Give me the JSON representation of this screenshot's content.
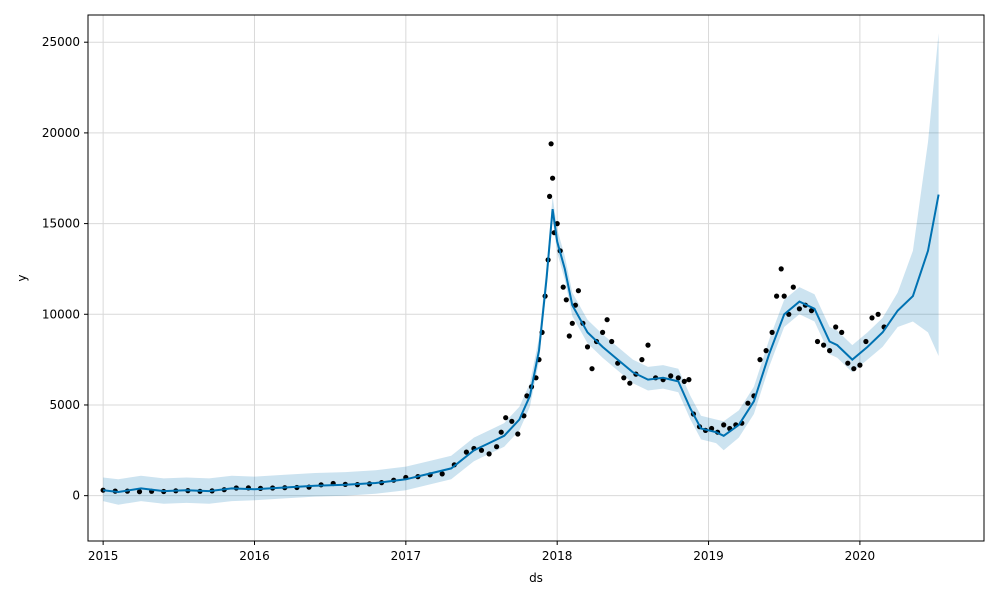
{
  "chart_data": {
    "type": "line",
    "title": "",
    "xlabel": "ds",
    "ylabel": "y",
    "grid": true,
    "xlim": [
      2014.9,
      2020.82
    ],
    "ylim": [
      -2500,
      26500
    ],
    "x_ticks": [
      {
        "value": 2015,
        "label": "2015"
      },
      {
        "value": 2016,
        "label": "2016"
      },
      {
        "value": 2017,
        "label": "2017"
      },
      {
        "value": 2018,
        "label": "2018"
      },
      {
        "value": 2019,
        "label": "2019"
      },
      {
        "value": 2020,
        "label": "2020"
      }
    ],
    "y_ticks": [
      {
        "value": 0,
        "label": "0"
      },
      {
        "value": 5000,
        "label": "5000"
      },
      {
        "value": 10000,
        "label": "10000"
      },
      {
        "value": 15000,
        "label": "15000"
      },
      {
        "value": 20000,
        "label": "20000"
      },
      {
        "value": 25000,
        "label": "25000"
      }
    ],
    "colors": {
      "forecast_line": "#0072B2",
      "uncertainty_band": "#0072B2",
      "observed_points": "#000000",
      "grid": "#d9d9d9"
    },
    "forecast": {
      "x": [
        2015.0,
        2015.1,
        2015.25,
        2015.4,
        2015.55,
        2015.7,
        2015.85,
        2016.0,
        2016.2,
        2016.4,
        2016.6,
        2016.8,
        2017.0,
        2017.15,
        2017.3,
        2017.45,
        2017.55,
        2017.65,
        2017.75,
        2017.82,
        2017.88,
        2017.93,
        2017.97,
        2018.0,
        2018.05,
        2018.1,
        2018.2,
        2018.3,
        2018.4,
        2018.5,
        2018.6,
        2018.7,
        2018.8,
        2018.88,
        2018.95,
        2019.05,
        2019.1,
        2019.2,
        2019.3,
        2019.4,
        2019.5,
        2019.6,
        2019.7,
        2019.8,
        2019.85,
        2019.95,
        2020.05,
        2020.15,
        2020.25,
        2020.35,
        2020.45,
        2020.52
      ],
      "yhat": [
        300,
        200,
        400,
        250,
        300,
        250,
        400,
        350,
        450,
        550,
        600,
        700,
        900,
        1200,
        1500,
        2500,
        2900,
        3300,
        4200,
        5500,
        8000,
        12000,
        15800,
        14000,
        12500,
        10500,
        9000,
        8200,
        7500,
        6800,
        6400,
        6500,
        6300,
        4800,
        3700,
        3500,
        3300,
        3900,
        5200,
        7800,
        10000,
        10700,
        10300,
        8500,
        8300,
        7500,
        8200,
        9000,
        10200,
        11000,
        13500,
        16600
      ],
      "lower": [
        -300,
        -500,
        -300,
        -450,
        -400,
        -450,
        -300,
        -250,
        -150,
        -50,
        0,
        100,
        300,
        600,
        900,
        1900,
        2300,
        2700,
        3600,
        4900,
        7400,
        11400,
        15200,
        13400,
        11900,
        9900,
        8400,
        7600,
        6900,
        6200,
        5800,
        5900,
        5700,
        4200,
        3100,
        2900,
        2500,
        3200,
        4500,
        7100,
        9300,
        10000,
        9600,
        7800,
        7600,
        6800,
        7500,
        8200,
        9300,
        9600,
        9000,
        7700
      ],
      "upper": [
        1000,
        900,
        1100,
        950,
        1000,
        950,
        1100,
        1050,
        1150,
        1250,
        1300,
        1400,
        1600,
        1900,
        2200,
        3200,
        3600,
        4000,
        4900,
        6200,
        8700,
        12700,
        16500,
        14700,
        13200,
        11200,
        9700,
        8900,
        8200,
        7500,
        7100,
        7200,
        7000,
        5500,
        4400,
        4200,
        4100,
        4700,
        6000,
        8600,
        10800,
        11500,
        11100,
        9300,
        9100,
        8300,
        9000,
        9800,
        11200,
        13500,
        19500,
        25500
      ]
    },
    "observed": {
      "x": [
        2015.0,
        2015.08,
        2015.16,
        2015.24,
        2015.32,
        2015.4,
        2015.48,
        2015.56,
        2015.64,
        2015.72,
        2015.8,
        2015.88,
        2015.96,
        2016.04,
        2016.12,
        2016.2,
        2016.28,
        2016.36,
        2016.44,
        2016.52,
        2016.6,
        2016.68,
        2016.76,
        2016.84,
        2016.92,
        2017.0,
        2017.08,
        2017.16,
        2017.24,
        2017.32,
        2017.4,
        2017.45,
        2017.5,
        2017.55,
        2017.6,
        2017.63,
        2017.66,
        2017.7,
        2017.74,
        2017.78,
        2017.8,
        2017.83,
        2017.86,
        2017.88,
        2017.9,
        2017.92,
        2017.94,
        2017.95,
        2017.96,
        2017.97,
        2017.98,
        2018.0,
        2018.02,
        2018.04,
        2018.06,
        2018.08,
        2018.1,
        2018.12,
        2018.14,
        2018.17,
        2018.2,
        2018.23,
        2018.26,
        2018.3,
        2018.33,
        2018.36,
        2018.4,
        2018.44,
        2018.48,
        2018.52,
        2018.56,
        2018.6,
        2018.65,
        2018.7,
        2018.75,
        2018.8,
        2018.84,
        2018.87,
        2018.9,
        2018.94,
        2018.98,
        2019.02,
        2019.06,
        2019.1,
        2019.14,
        2019.18,
        2019.22,
        2019.26,
        2019.3,
        2019.34,
        2019.38,
        2019.42,
        2019.45,
        2019.48,
        2019.5,
        2019.53,
        2019.56,
        2019.6,
        2019.64,
        2019.68,
        2019.72,
        2019.76,
        2019.8,
        2019.84,
        2019.88,
        2019.92,
        2019.96,
        2020.0,
        2020.04,
        2020.08,
        2020.12,
        2020.16
      ],
      "y": [
        300,
        250,
        250,
        220,
        240,
        230,
        270,
        280,
        240,
        260,
        330,
        420,
        430,
        400,
        420,
        440,
        450,
        470,
        600,
        670,
        620,
        610,
        650,
        720,
        850,
        1000,
        1050,
        1150,
        1200,
        1700,
        2400,
        2600,
        2500,
        2300,
        2700,
        3500,
        4300,
        4100,
        3400,
        4400,
        5500,
        6000,
        6500,
        7500,
        9000,
        11000,
        13000,
        16500,
        19400,
        17500,
        14500,
        15000,
        13500,
        11500,
        10800,
        8800,
        9500,
        10500,
        11300,
        9500,
        8200,
        7000,
        8500,
        9000,
        9700,
        8500,
        7300,
        6500,
        6200,
        6700,
        7500,
        8300,
        6500,
        6400,
        6600,
        6500,
        6300,
        6400,
        4500,
        3800,
        3600,
        3700,
        3500,
        3900,
        3700,
        3900,
        4000,
        5100,
        5500,
        7500,
        8000,
        9000,
        11000,
        12500,
        11000,
        10000,
        11500,
        10300,
        10500,
        10200,
        8500,
        8300,
        8000,
        9300,
        9000,
        7300,
        7000,
        7200,
        8500,
        9800,
        10000,
        9300
      ]
    }
  }
}
